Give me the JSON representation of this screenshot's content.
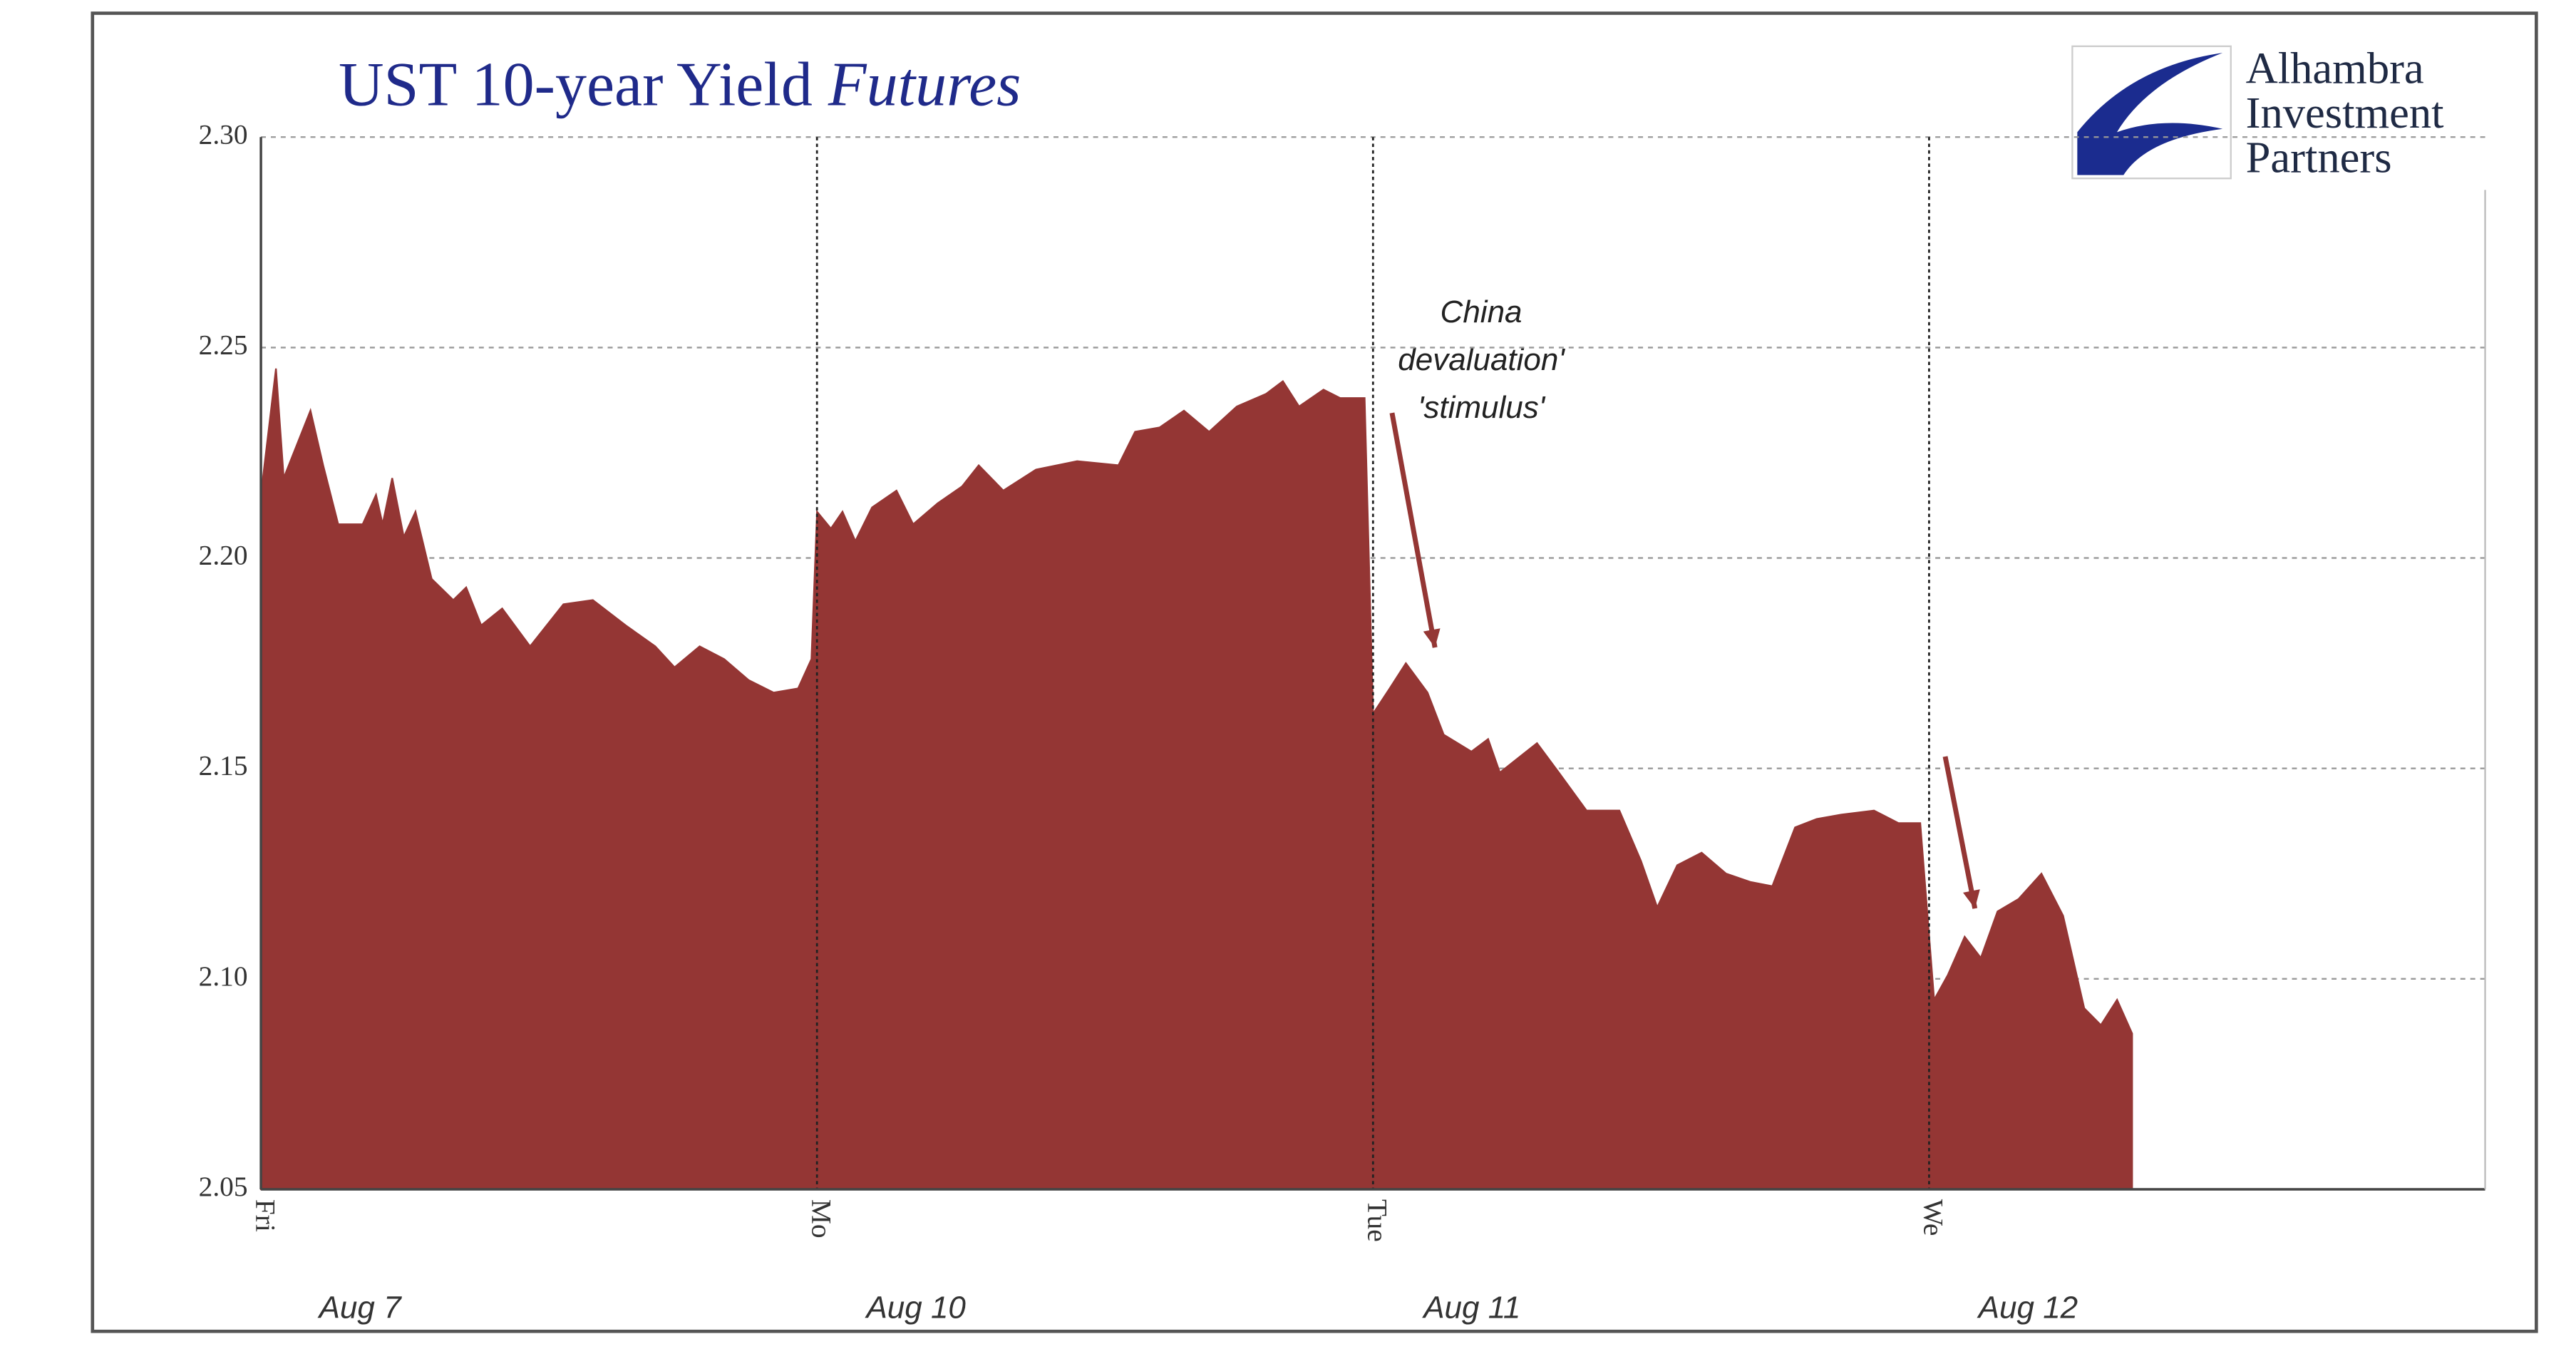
{
  "chart_data": {
    "type": "area",
    "title": "UST 10-year Yield",
    "title_italic": "Futures",
    "logo": [
      "Alhambra",
      "Investment",
      "Partners"
    ],
    "annotation": [
      "China",
      "devaluation'",
      "'stimulus'"
    ],
    "color": "#943634",
    "xlim": [
      0,
      4
    ],
    "xticks": [
      {
        "value": 0,
        "label": "Fri"
      },
      {
        "value": 1,
        "label": "Mo"
      },
      {
        "value": 2,
        "label": "Tue"
      },
      {
        "value": 3,
        "label": "We"
      }
    ],
    "date_labels": [
      "Aug 7",
      "Aug 10",
      "Aug 11",
      "Aug 12"
    ],
    "ylim": [
      2.05,
      2.3
    ],
    "yticks": [
      {
        "value": 2.05,
        "label": "2.05"
      },
      {
        "value": 2.1,
        "label": "2.10"
      },
      {
        "value": 2.15,
        "label": "2.15"
      },
      {
        "value": 2.2,
        "label": "2.20"
      },
      {
        "value": 2.25,
        "label": "2.25"
      },
      {
        "value": 2.3,
        "label": "2.30"
      }
    ],
    "grid": true,
    "x": [
      0,
      0.027,
      0.041,
      0.065,
      0.089,
      0.112,
      0.139,
      0.183,
      0.207,
      0.219,
      0.236,
      0.257,
      0.278,
      0.307,
      0.346,
      0.369,
      0.396,
      0.434,
      0.484,
      0.544,
      0.597,
      0.656,
      0.709,
      0.744,
      0.789,
      0.833,
      0.877,
      0.922,
      0.966,
      0.99,
      1.0,
      1.025,
      1.046,
      1.069,
      1.099,
      1.143,
      1.173,
      1.217,
      1.261,
      1.291,
      1.335,
      1.394,
      1.468,
      1.542,
      1.572,
      1.616,
      1.66,
      1.705,
      1.755,
      1.808,
      1.838,
      1.867,
      1.911,
      1.941,
      1.985,
      2.0,
      2.03,
      2.059,
      2.098,
      2.127,
      2.177,
      2.207,
      2.228,
      2.266,
      2.295,
      2.334,
      2.384,
      2.443,
      2.482,
      2.511,
      2.547,
      2.591,
      2.635,
      2.679,
      2.718,
      2.759,
      2.798,
      2.842,
      2.901,
      2.945,
      2.984,
      3.009,
      3.034,
      3.064,
      3.093,
      3.123,
      3.161,
      3.202,
      3.241,
      3.279,
      3.309,
      3.338,
      3.365
    ],
    "values": [
      2.215,
      2.245,
      2.219,
      2.227,
      2.235,
      2.222,
      2.208,
      2.208,
      2.215,
      2.208,
      2.219,
      2.205,
      2.211,
      2.195,
      2.19,
      2.193,
      2.184,
      2.188,
      2.179,
      2.189,
      2.19,
      2.184,
      2.179,
      2.174,
      2.179,
      2.176,
      2.171,
      2.168,
      2.169,
      2.176,
      2.211,
      2.207,
      2.211,
      2.204,
      2.212,
      2.216,
      2.208,
      2.213,
      2.217,
      2.222,
      2.216,
      2.221,
      2.223,
      2.222,
      2.23,
      2.231,
      2.235,
      2.23,
      2.236,
      2.239,
      2.242,
      2.236,
      2.24,
      2.238,
      2.238,
      2.163,
      2.169,
      2.175,
      2.168,
      2.158,
      2.154,
      2.157,
      2.149,
      2.153,
      2.156,
      2.149,
      2.14,
      2.14,
      2.128,
      2.117,
      2.127,
      2.13,
      2.125,
      2.123,
      2.122,
      2.136,
      2.138,
      2.139,
      2.14,
      2.137,
      2.137,
      2.095,
      2.101,
      2.11,
      2.105,
      2.116,
      2.119,
      2.125,
      2.115,
      2.093,
      2.089,
      2.095,
      2.087
    ]
  }
}
